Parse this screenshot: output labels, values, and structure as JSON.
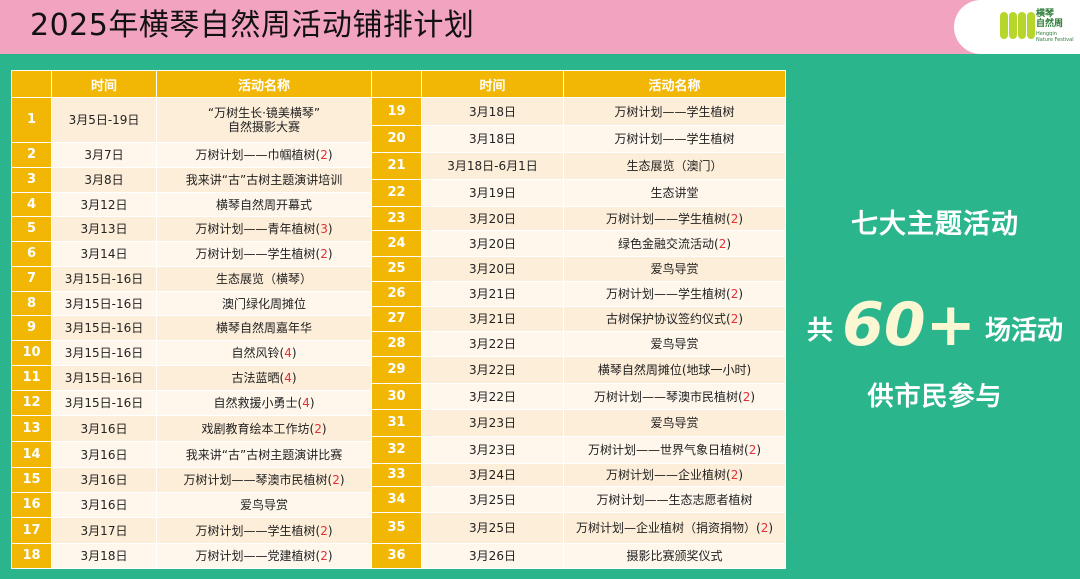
{
  "title": "2025年横琴自然周活动铺排计划",
  "logo": {
    "text_line1": "横琴",
    "text_line2": "自然周",
    "sub_line1": "Hengqin",
    "sub_line2": "Nature Festival"
  },
  "table": {
    "headers": {
      "num": "",
      "time": "时间",
      "name": "活动名称"
    },
    "left_rows": [
      {
        "n": "1",
        "date": "3月5日-19日",
        "name": "“万树生长·镜美横琴”\n自然摄影大赛",
        "count": ""
      },
      {
        "n": "2",
        "date": "3月7日",
        "name": "万树计划——巾帼植树",
        "count": "2"
      },
      {
        "n": "3",
        "date": "3月8日",
        "name": "我来讲“古”古树主题演讲培训",
        "count": ""
      },
      {
        "n": "4",
        "date": "3月12日",
        "name": "横琴自然周开幕式",
        "count": ""
      },
      {
        "n": "5",
        "date": "3月13日",
        "name": "万树计划——青年植树",
        "count": "3"
      },
      {
        "n": "6",
        "date": "3月14日",
        "name": "万树计划——学生植树",
        "count": "2"
      },
      {
        "n": "7",
        "date": "3月15日-16日",
        "name": "生态展览（横琴）",
        "count": ""
      },
      {
        "n": "8",
        "date": "3月15日-16日",
        "name": "澳门绿化周摊位",
        "count": ""
      },
      {
        "n": "9",
        "date": "3月15日-16日",
        "name": "横琴自然周嘉年华",
        "count": ""
      },
      {
        "n": "10",
        "date": "3月15日-16日",
        "name": "自然风铃",
        "count": "4"
      },
      {
        "n": "11",
        "date": "3月15日-16日",
        "name": "古法蓝晒",
        "count": "4"
      },
      {
        "n": "12",
        "date": "3月15日-16日",
        "name": "自然救援小勇士",
        "count": "4"
      },
      {
        "n": "13",
        "date": "3月16日",
        "name": "戏剧教育绘本工作坊",
        "count": "2"
      },
      {
        "n": "14",
        "date": "3月16日",
        "name": "我来讲“古”古树主题演讲比赛",
        "count": ""
      },
      {
        "n": "15",
        "date": "3月16日",
        "name": "万树计划——琴澳市民植树",
        "count": "2"
      },
      {
        "n": "16",
        "date": "3月16日",
        "name": "爱鸟导赏",
        "count": ""
      },
      {
        "n": "17",
        "date": "3月17日",
        "name": "万树计划——学生植树",
        "count": "2"
      },
      {
        "n": "18",
        "date": "3月18日",
        "name": "万树计划——党建植树",
        "count": "2"
      }
    ],
    "right_rows": [
      {
        "n": "19",
        "date": "3月18日",
        "name": "万树计划——学生植树",
        "count": ""
      },
      {
        "n": "20",
        "date": "3月18日",
        "name": "万树计划——学生植树",
        "count": ""
      },
      {
        "n": "21",
        "date": "3月18日-6月1日",
        "name": "生态展览（澳门）",
        "count": ""
      },
      {
        "n": "22",
        "date": "3月19日",
        "name": "生态讲堂",
        "count": ""
      },
      {
        "n": "23",
        "date": "3月20日",
        "name": "万树计划——学生植树",
        "count": "2"
      },
      {
        "n": "24",
        "date": "3月20日",
        "name": "绿色金融交流活动",
        "count": "2"
      },
      {
        "n": "25",
        "date": "3月20日",
        "name": "爱鸟导赏",
        "count": ""
      },
      {
        "n": "26",
        "date": "3月21日",
        "name": "万树计划——学生植树",
        "count": "2"
      },
      {
        "n": "27",
        "date": "3月21日",
        "name": "古树保护协议签约仪式",
        "count": "2"
      },
      {
        "n": "28",
        "date": "3月22日",
        "name": "爱鸟导赏",
        "count": ""
      },
      {
        "n": "29",
        "date": "3月22日",
        "name": "横琴自然周摊位(地球一小时)",
        "count": ""
      },
      {
        "n": "30",
        "date": "3月22日",
        "name": "万树计划——琴澳市民植树",
        "count": "2"
      },
      {
        "n": "31",
        "date": "3月23日",
        "name": "爱鸟导赏",
        "count": ""
      },
      {
        "n": "32",
        "date": "3月23日",
        "name": "万树计划——世界气象日植树",
        "count": "2"
      },
      {
        "n": "33",
        "date": "3月24日",
        "name": "万树计划——企业植树",
        "count": "2"
      },
      {
        "n": "34",
        "date": "3月25日",
        "name": "万树计划——生态志愿者植树",
        "count": ""
      },
      {
        "n": "35",
        "date": "3月25日",
        "name": "万树计划—企业植树（捐资捐物）",
        "count": "2"
      },
      {
        "n": "36",
        "date": "3月26日",
        "name": "摄影比赛颁奖仪式",
        "count": ""
      }
    ]
  },
  "side": {
    "theme": "七大主题活动",
    "count_prefix": "共",
    "count_number": "60+",
    "count_suffix": "场活动",
    "participate": "供市民参与"
  }
}
